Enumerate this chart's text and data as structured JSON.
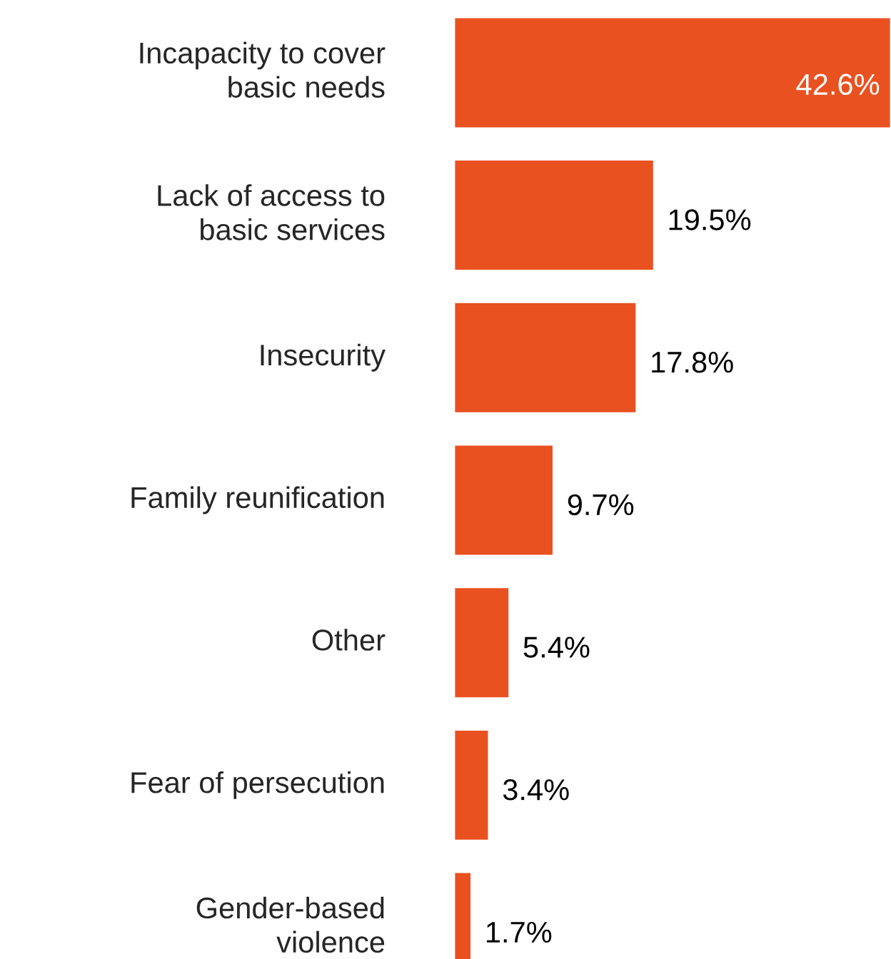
{
  "chart_data": {
    "type": "bar",
    "orientation": "horizontal",
    "relative": false,
    "categories": [
      "Incapacity to cover basic needs",
      "Lack of access to basic services",
      "Insecurity",
      "Family reunification",
      "Other",
      "Fear of persecution",
      "Gender-based violence"
    ],
    "values": [
      42.6,
      19.5,
      17.8,
      9.7,
      5.4,
      3.4,
      1.7
    ],
    "value_labels": [
      "42.6%",
      "19.5%",
      "17.8%",
      "9.7%",
      "5.4%",
      "3.4%",
      "1.7%"
    ],
    "color": "#e95120"
  }
}
